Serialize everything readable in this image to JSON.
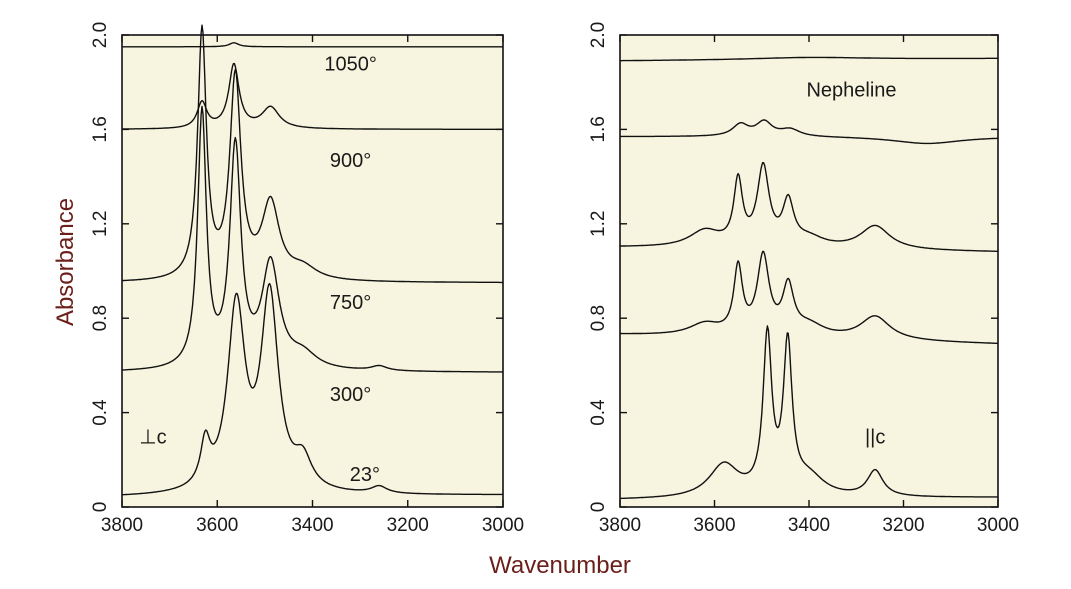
{
  "figure": {
    "ylabel": "Absorbance",
    "xlabel": "Wavenumber"
  },
  "chart_data": [
    {
      "type": "line",
      "panel": "left",
      "xlim": [
        3800,
        3000
      ],
      "ylim": [
        0,
        2.0
      ],
      "x_reversed": true,
      "xticks": [
        3800,
        3600,
        3400,
        3200,
        3000
      ],
      "yticks": [
        0,
        0.4,
        0.8,
        1.2,
        1.6,
        2.0
      ],
      "ytick_labels": [
        "0",
        "0.4",
        "0.8",
        "1.2",
        "1.6",
        "2.0"
      ],
      "background": "#f7f5df",
      "annotations": [
        {
          "text": "1050°",
          "x": 3320,
          "y": 1.85
        },
        {
          "text": "900°",
          "x": 3320,
          "y": 1.44
        },
        {
          "text": "750°",
          "x": 3320,
          "y": 0.84
        },
        {
          "text": "300°",
          "x": 3320,
          "y": 0.45
        },
        {
          "text": "23°",
          "x": 3290,
          "y": 0.11
        },
        {
          "text": "⊥c",
          "x": 3735,
          "y": 0.27
        }
      ],
      "series": [
        {
          "baseline": 0.04,
          "trail": 0.05,
          "peaks": [
            {
              "x": 3625,
              "h": 0.18,
              "w": 12
            },
            {
              "x": 3560,
              "h": 0.78,
              "w": 22
            },
            {
              "x": 3490,
              "h": 0.82,
              "w": 22
            },
            {
              "x": 3420,
              "h": 0.12,
              "w": 22
            },
            {
              "x": 3260,
              "h": 0.03,
              "w": 20
            }
          ]
        },
        {
          "baseline": 0.57,
          "trail": 0.57,
          "peaks": [
            {
              "x": 3632,
              "h": 1.08,
              "w": 11
            },
            {
              "x": 3562,
              "h": 0.93,
              "w": 14
            },
            {
              "x": 3488,
              "h": 0.44,
              "w": 22
            },
            {
              "x": 3420,
              "h": 0.06,
              "w": 35
            },
            {
              "x": 3260,
              "h": 0.02,
              "w": 20
            }
          ]
        },
        {
          "baseline": 0.95,
          "trail": 0.95,
          "peaks": [
            {
              "x": 3632,
              "h": 1.05,
              "w": 11
            },
            {
              "x": 3562,
              "h": 0.85,
              "w": 14
            },
            {
              "x": 3488,
              "h": 0.32,
              "w": 22
            },
            {
              "x": 3420,
              "h": 0.05,
              "w": 35
            }
          ]
        },
        {
          "baseline": 1.6,
          "trail": 1.6,
          "peaks": [
            {
              "x": 3632,
              "h": 0.11,
              "w": 12
            },
            {
              "x": 3565,
              "h": 0.27,
              "w": 13
            },
            {
              "x": 3488,
              "h": 0.09,
              "w": 22
            }
          ]
        },
        {
          "baseline": 1.95,
          "trail": 1.95,
          "peaks": [
            {
              "x": 3565,
              "h": 0.017,
              "w": 12
            }
          ]
        }
      ]
    },
    {
      "type": "line",
      "panel": "right",
      "xlim": [
        3800,
        3000
      ],
      "ylim": [
        0,
        2.0
      ],
      "x_reversed": true,
      "xticks": [
        3800,
        3600,
        3400,
        3200,
        3000
      ],
      "yticks": [
        0,
        0.4,
        0.8,
        1.2,
        1.6,
        2.0
      ],
      "ytick_labels": [
        "0",
        "0.4",
        "0.8",
        "1.2",
        "1.6",
        "2.0"
      ],
      "background": "#f7f5df",
      "annotations": [
        {
          "text": "Nepheline",
          "x": 3310,
          "y": 1.74
        },
        {
          "text": "||c",
          "x": 3260,
          "y": 0.27
        }
      ],
      "series": [
        {
          "baseline": 0.03,
          "trail": 0.04,
          "peaks": [
            {
              "x": 3580,
              "h": 0.14,
              "w": 38
            },
            {
              "x": 3488,
              "h": 0.66,
              "w": 11
            },
            {
              "x": 3445,
              "h": 0.62,
              "w": 11
            },
            {
              "x": 3260,
              "h": 0.11,
              "w": 20
            },
            {
              "x": 3400,
              "h": 0.08,
              "w": 40
            }
          ]
        },
        {
          "baseline": 0.73,
          "trail": 0.69,
          "peaks": [
            {
              "x": 3620,
              "h": 0.05,
              "w": 40
            },
            {
              "x": 3550,
              "h": 0.28,
              "w": 11
            },
            {
              "x": 3497,
              "h": 0.33,
              "w": 15
            },
            {
              "x": 3444,
              "h": 0.2,
              "w": 14
            },
            {
              "x": 3260,
              "h": 0.1,
              "w": 38
            },
            {
              "x": 3400,
              "h": 0.05,
              "w": 40
            }
          ]
        },
        {
          "baseline": 1.1,
          "trail": 1.08,
          "peaks": [
            {
              "x": 3620,
              "h": 0.07,
              "w": 40
            },
            {
              "x": 3550,
              "h": 0.27,
              "w": 11
            },
            {
              "x": 3497,
              "h": 0.33,
              "w": 15
            },
            {
              "x": 3444,
              "h": 0.18,
              "w": 14
            },
            {
              "x": 3260,
              "h": 0.1,
              "w": 38
            },
            {
              "x": 3400,
              "h": 0.04,
              "w": 40
            }
          ]
        },
        {
          "baseline": 1.57,
          "trail": 1.57,
          "peaks": [
            {
              "x": 3545,
              "h": 0.05,
              "w": 20
            },
            {
              "x": 3495,
              "h": 0.06,
              "w": 20
            },
            {
              "x": 3440,
              "h": 0.03,
              "w": 25
            },
            {
              "x": 3150,
              "h": -0.03,
              "w": 90
            }
          ]
        },
        {
          "baseline": 1.89,
          "trail": 1.9,
          "peaks": [
            {
              "x": 3400,
              "h": 0.01,
              "w": 150
            }
          ]
        }
      ]
    }
  ]
}
